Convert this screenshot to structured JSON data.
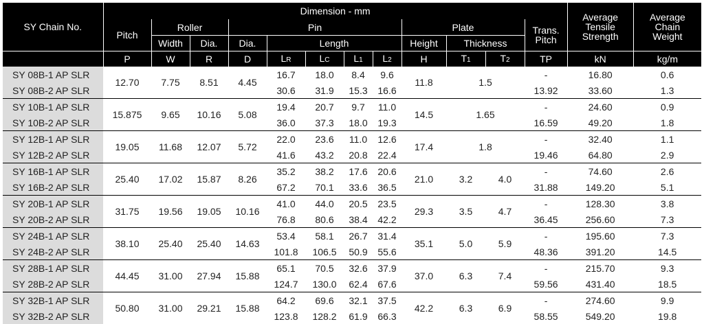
{
  "header": {
    "chain_no": "SY Chain No.",
    "dimension": "Dimension - mm",
    "pitch": "Pitch",
    "roller": "Roller",
    "pin": "Pin",
    "plate": "Plate",
    "trans_pitch_1": "Trans.",
    "trans_pitch_2": "Pitch",
    "avg_tensile_1": "Average",
    "avg_tensile_2": "Tensile",
    "avg_tensile_3": "Strength",
    "avg_weight_1": "Average",
    "avg_weight_2": "Chain",
    "avg_weight_3": "Weight",
    "width": "Width",
    "roller_dia": "Dia.",
    "pin_dia": "Dia.",
    "length": "Length",
    "height": "Height",
    "thickness": "Thickness",
    "sym_p": "P",
    "sym_w": "W",
    "sym_r": "R",
    "sym_d": "D",
    "sym_lr": "L",
    "sym_lr_sub": "R",
    "sym_lc": "L",
    "sym_lc_sub": "C",
    "sym_l1": "L",
    "sym_l1_sub": "1",
    "sym_l2": "L",
    "sym_l2_sub": "2",
    "sym_h": "H",
    "sym_t1": "T",
    "sym_t1_sub": "1",
    "sym_t2": "T",
    "sym_t2_sub": "2",
    "sym_tp": "TP",
    "unit_kn": "kN",
    "unit_kgm": "kg/m"
  },
  "groups": [
    {
      "rows": [
        {
          "name": "SY 08B-1 AP SLR",
          "lr": "16.7",
          "lc": "18.0",
          "l1": "8.4",
          "l2": "9.6",
          "tp": "-",
          "kn": "16.80",
          "kg": "0.6"
        },
        {
          "name": "SY 08B-2 AP SLR",
          "lr": "30.6",
          "lc": "31.9",
          "l1": "15.3",
          "l2": "16.6",
          "tp": "13.92",
          "kn": "33.60",
          "kg": "1.3"
        }
      ],
      "p": "12.70",
      "w": "7.75",
      "r": "8.51",
      "d": "4.45",
      "h": "11.8",
      "t": "1.5"
    },
    {
      "rows": [
        {
          "name": "SY 10B-1 AP SLR",
          "lr": "19.4",
          "lc": "20.7",
          "l1": "9.7",
          "l2": "11.0",
          "tp": "-",
          "kn": "24.60",
          "kg": "0.9"
        },
        {
          "name": "SY 10B-2 AP SLR",
          "lr": "36.0",
          "lc": "37.3",
          "l1": "18.0",
          "l2": "19.3",
          "tp": "16.59",
          "kn": "49.20",
          "kg": "1.8"
        }
      ],
      "p": "15.875",
      "w": "9.65",
      "r": "10.16",
      "d": "5.08",
      "h": "14.5",
      "t": "1.65"
    },
    {
      "rows": [
        {
          "name": "SY 12B-1 AP SLR",
          "lr": "22.0",
          "lc": "23.6",
          "l1": "11.0",
          "l2": "12.6",
          "tp": "-",
          "kn": "32.40",
          "kg": "1.1"
        },
        {
          "name": "SY 12B-2 AP SLR",
          "lr": "41.6",
          "lc": "43.2",
          "l1": "20.8",
          "l2": "22.4",
          "tp": "19.46",
          "kn": "64.80",
          "kg": "2.9"
        }
      ],
      "p": "19.05",
      "w": "11.68",
      "r": "12.07",
      "d": "5.72",
      "h": "17.4",
      "t": "1.8"
    },
    {
      "rows": [
        {
          "name": "SY 16B-1 AP SLR",
          "lr": "35.2",
          "lc": "38.2",
          "l1": "17.6",
          "l2": "20.6",
          "tp": "-",
          "kn": "74.60",
          "kg": "2.6"
        },
        {
          "name": "SY 16B-2 AP SLR",
          "lr": "67.2",
          "lc": "70.1",
          "l1": "33.6",
          "l2": "36.5",
          "tp": "31.88",
          "kn": "149.20",
          "kg": "5.1"
        }
      ],
      "p": "25.40",
      "w": "17.02",
      "r": "15.87",
      "d": "8.26",
      "h": "21.0",
      "t1": "3.2",
      "t2": "4.0"
    },
    {
      "rows": [
        {
          "name": "SY 20B-1 AP SLR",
          "lr": "41.0",
          "lc": "44.0",
          "l1": "20.5",
          "l2": "23.5",
          "tp": "-",
          "kn": "128.30",
          "kg": "3.8"
        },
        {
          "name": "SY 20B-2 AP SLR",
          "lr": "76.8",
          "lc": "80.6",
          "l1": "38.4",
          "l2": "42.2",
          "tp": "36.45",
          "kn": "256.60",
          "kg": "7.3"
        }
      ],
      "p": "31.75",
      "w": "19.56",
      "r": "19.05",
      "d": "10.16",
      "h": "29.3",
      "t1": "3.5",
      "t2": "4.7"
    },
    {
      "rows": [
        {
          "name": "SY 24B-1 AP SLR",
          "lr": "53.4",
          "lc": "58.1",
          "l1": "26.7",
          "l2": "31.4",
          "tp": "-",
          "kn": "195.60",
          "kg": "7.3"
        },
        {
          "name": "SY 24B-2 AP SLR",
          "lr": "101.8",
          "lc": "106.5",
          "l1": "50.9",
          "l2": "55.6",
          "tp": "48.36",
          "kn": "391.20",
          "kg": "14.5"
        }
      ],
      "p": "38.10",
      "w": "25.40",
      "r": "25.40",
      "d": "14.63",
      "h": "35.1",
      "t1": "5.0",
      "t2": "5.9"
    },
    {
      "rows": [
        {
          "name": "SY 28B-1 AP SLR",
          "lr": "65.1",
          "lc": "70.5",
          "l1": "32.6",
          "l2": "37.9",
          "tp": "-",
          "kn": "215.70",
          "kg": "9.3"
        },
        {
          "name": "SY 28B-2 AP SLR",
          "lr": "124.7",
          "lc": "130.0",
          "l1": "62.4",
          "l2": "67.6",
          "tp": "59.56",
          "kn": "431.40",
          "kg": "18.5"
        }
      ],
      "p": "44.45",
      "w": "31.00",
      "r": "27.94",
      "d": "15.88",
      "h": "37.0",
      "t1": "6.3",
      "t2": "7.4"
    },
    {
      "rows": [
        {
          "name": "SY 32B-1 AP SLR",
          "lr": "64.2",
          "lc": "69.6",
          "l1": "32.1",
          "l2": "37.5",
          "tp": "-",
          "kn": "274.60",
          "kg": "9.9"
        },
        {
          "name": "SY 32B-2 AP SLR",
          "lr": "123.8",
          "lc": "128.2",
          "l1": "61.9",
          "l2": "66.3",
          "tp": "58.55",
          "kn": "549.20",
          "kg": "19.8"
        }
      ],
      "p": "50.80",
      "w": "31.00",
      "r": "29.21",
      "d": "15.88",
      "h": "42.2",
      "t1": "6.3",
      "t2": "6.9"
    }
  ]
}
